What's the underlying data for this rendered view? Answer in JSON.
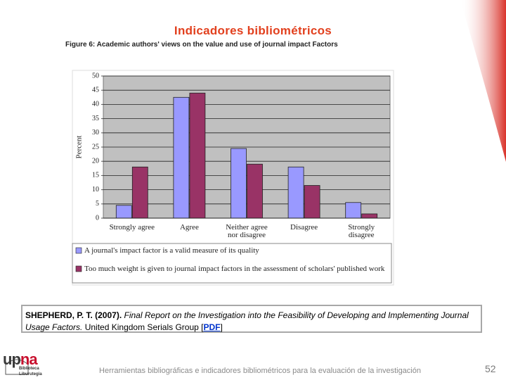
{
  "title": "Indicadores bibliométricos",
  "chart_data": {
    "type": "bar",
    "title": "Figure 6:  Academic authors' views on the value and use of journal impact Factors",
    "y_label": "Percent",
    "categories": [
      "Strongly agree",
      "Agree",
      "Neither agree nor disagree",
      "Disagree",
      "Strongly disagree"
    ],
    "series": [
      {
        "name": "A journal's impact factor is a valid measure of its quality",
        "color": "#9999ff",
        "values": [
          4.5,
          42.5,
          24.5,
          18,
          5.5
        ]
      },
      {
        "name": "Too much weight is given to journal impact factors in the assessment of scholars' published work",
        "color": "#993366",
        "values": [
          18,
          44,
          19,
          11.5,
          1.5
        ]
      }
    ],
    "ylim": [
      0,
      50
    ],
    "yticks": [
      0,
      5,
      10,
      15,
      20,
      25,
      30,
      35,
      40,
      45,
      50
    ],
    "grid": true
  },
  "citation": {
    "author": "SHEPHERD, P. T. (2007).",
    "title": "Final Report on the Investigation into the Feasibility of Developing and Implementing Journal Usage Factors.",
    "publisher": "United Kingdom Serials Group [",
    "link": "PDF",
    "close": "]"
  },
  "logo": {
    "parts": [
      "up",
      "na"
    ],
    "lines": [
      "Biblioteca",
      "Liburutegia"
    ]
  },
  "footer": {
    "text": "Herramientas bibliográficas e indicadores bibliométricos para la evaluación de la investigación",
    "page": 52
  }
}
